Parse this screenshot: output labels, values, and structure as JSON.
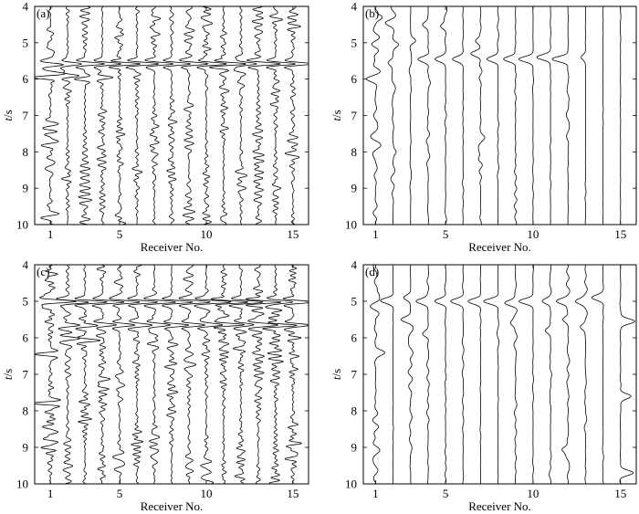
{
  "chart_data": [
    {
      "type": "line",
      "panel_label": "(a)",
      "xlabel": "Receiver No.",
      "ylabel": "t/s",
      "xticks": [
        1,
        5,
        10,
        15
      ],
      "yticks": [
        4,
        5,
        6,
        7,
        8,
        9,
        10
      ],
      "xlim": [
        0.1,
        15.9
      ],
      "ylim": [
        4,
        10
      ],
      "y_axis_reversed": true,
      "grid": false,
      "receivers": [
        1,
        2,
        3,
        4,
        5,
        6,
        7,
        8,
        9,
        10,
        11,
        12,
        13,
        14,
        15
      ],
      "noise_amplitude": [
        0.55,
        0.35,
        0.4,
        0.3,
        0.35,
        0.3,
        0.35,
        0.3,
        0.35,
        0.35,
        0.35,
        0.35,
        0.35,
        0.4,
        0.45
      ],
      "noise_frequency_hz": 4.5,
      "events": [
        {
          "receiver": 1,
          "t": 5.6,
          "amp": 0.7
        },
        {
          "receiver": 1,
          "t": 5.95,
          "amp": -0.9
        },
        {
          "receiver": 1,
          "t": 7.45,
          "amp": 0.7
        },
        {
          "receiver": 2,
          "t": 5.58,
          "amp": 0.9
        },
        {
          "receiver": 2,
          "t": 5.9,
          "amp": 0.8
        },
        {
          "receiver": 3,
          "t": 5.58,
          "amp": 1.1
        },
        {
          "receiver": 3,
          "t": 6.0,
          "amp": -0.6
        },
        {
          "receiver": 4,
          "t": 5.58,
          "amp": 1.1
        },
        {
          "receiver": 4,
          "t": 5.95,
          "amp": 0.6
        },
        {
          "receiver": 5,
          "t": 5.58,
          "amp": 1.1
        },
        {
          "receiver": 6,
          "t": 5.58,
          "amp": 1.1
        },
        {
          "receiver": 7,
          "t": 5.58,
          "amp": 1.1
        },
        {
          "receiver": 8,
          "t": 5.58,
          "amp": 1.1
        },
        {
          "receiver": 9,
          "t": 5.58,
          "amp": 1.1
        },
        {
          "receiver": 10,
          "t": 5.58,
          "amp": 1.1
        },
        {
          "receiver": 11,
          "t": 5.58,
          "amp": 1.1
        },
        {
          "receiver": 12,
          "t": 5.58,
          "amp": 1.1
        },
        {
          "receiver": 13,
          "t": 5.58,
          "amp": 1.1
        },
        {
          "receiver": 14,
          "t": 5.58,
          "amp": 1.1
        },
        {
          "receiver": 15,
          "t": 5.58,
          "amp": 1.1
        }
      ]
    },
    {
      "type": "line",
      "panel_label": "(b)",
      "xlabel": "Receiver No.",
      "ylabel": "t/s",
      "xticks": [
        1,
        5,
        10,
        15
      ],
      "yticks": [
        4,
        5,
        6,
        7,
        8,
        9,
        10
      ],
      "xlim": [
        0.3,
        15.9
      ],
      "ylim": [
        4,
        10
      ],
      "y_axis_reversed": true,
      "grid": false,
      "receivers": [
        1,
        2,
        3,
        4,
        5,
        6,
        7,
        8,
        9,
        10,
        11,
        12,
        13,
        14,
        15
      ],
      "noise_amplitude": [
        0.3,
        0.15,
        0.08,
        0.1,
        0.08,
        0.04,
        0.12,
        0.05,
        0.08,
        0.03,
        0.03,
        0.1,
        0.03,
        0.02,
        0.02
      ],
      "noise_frequency_hz": 2,
      "events": [
        {
          "receiver": 1,
          "t": 4.3,
          "amp": 0.35
        },
        {
          "receiver": 1,
          "t": 6.0,
          "amp": -0.3
        },
        {
          "receiver": 2,
          "t": 4.45,
          "amp": -0.35
        },
        {
          "receiver": 2,
          "t": 5.05,
          "amp": 0.3
        },
        {
          "receiver": 2,
          "t": 5.55,
          "amp": -0.3
        },
        {
          "receiver": 2,
          "t": 8.0,
          "amp": 0.2
        },
        {
          "receiver": 3,
          "t": 4.95,
          "amp": 0.3
        },
        {
          "receiver": 4,
          "t": 4.5,
          "amp": -0.3
        },
        {
          "receiver": 4,
          "t": 5.45,
          "amp": -0.5
        },
        {
          "receiver": 4,
          "t": 6.1,
          "amp": 0.15
        },
        {
          "receiver": 5,
          "t": 4.55,
          "amp": -0.3
        },
        {
          "receiver": 5,
          "t": 5.45,
          "amp": -0.6
        },
        {
          "receiver": 6,
          "t": 5.45,
          "amp": -0.6
        },
        {
          "receiver": 7,
          "t": 4.95,
          "amp": -0.3
        },
        {
          "receiver": 7,
          "t": 5.3,
          "amp": -0.55
        },
        {
          "receiver": 7,
          "t": 7.6,
          "amp": 0.2
        },
        {
          "receiver": 7,
          "t": 8.0,
          "amp": -0.2
        },
        {
          "receiver": 8,
          "t": 5.45,
          "amp": -0.65
        },
        {
          "receiver": 9,
          "t": 5.45,
          "amp": -0.7
        },
        {
          "receiver": 10,
          "t": 5.45,
          "amp": -0.8
        },
        {
          "receiver": 11,
          "t": 5.4,
          "amp": -0.8
        },
        {
          "receiver": 12,
          "t": 5.45,
          "amp": -0.9
        },
        {
          "receiver": 13,
          "t": 5.4,
          "amp": -0.25
        }
      ]
    },
    {
      "type": "line",
      "panel_label": "(c)",
      "xlabel": "Receiver No.",
      "ylabel": "t/s",
      "xticks": [
        1,
        5,
        10,
        15
      ],
      "yticks": [
        4,
        5,
        6,
        7,
        8,
        9,
        10
      ],
      "xlim": [
        0.1,
        15.9
      ],
      "ylim": [
        4,
        10
      ],
      "y_axis_reversed": true,
      "grid": false,
      "receivers": [
        1,
        2,
        3,
        4,
        5,
        6,
        7,
        8,
        9,
        10,
        11,
        12,
        13,
        14,
        15
      ],
      "noise_amplitude": [
        0.7,
        0.45,
        0.5,
        0.45,
        0.4,
        0.35,
        0.4,
        0.4,
        0.4,
        0.4,
        0.4,
        0.45,
        0.4,
        0.45,
        0.5
      ],
      "noise_frequency_hz": 5,
      "events": [
        {
          "receiver": 1,
          "t": 5.02,
          "amp": 1.2
        },
        {
          "receiver": 1,
          "t": 6.45,
          "amp": -0.9
        },
        {
          "receiver": 1,
          "t": 7.8,
          "amp": -0.9
        },
        {
          "receiver": 1,
          "t": 9.0,
          "amp": -0.7
        },
        {
          "receiver": 2,
          "t": 5.02,
          "amp": 1.2
        },
        {
          "receiver": 2,
          "t": 5.65,
          "amp": 0.9
        },
        {
          "receiver": 2,
          "t": 6.0,
          "amp": 0.8
        },
        {
          "receiver": 3,
          "t": 5.02,
          "amp": 1.2
        },
        {
          "receiver": 3,
          "t": 5.65,
          "amp": 0.9
        },
        {
          "receiver": 3,
          "t": 6.05,
          "amp": 0.8
        },
        {
          "receiver": 4,
          "t": 5.02,
          "amp": 1.2
        },
        {
          "receiver": 4,
          "t": 5.65,
          "amp": 0.9
        },
        {
          "receiver": 5,
          "t": 5.02,
          "amp": 1.2
        },
        {
          "receiver": 5,
          "t": 5.65,
          "amp": 0.9
        },
        {
          "receiver": 6,
          "t": 5.02,
          "amp": 1.2
        },
        {
          "receiver": 6,
          "t": 5.65,
          "amp": 0.9
        },
        {
          "receiver": 7,
          "t": 5.02,
          "amp": 1.2
        },
        {
          "receiver": 7,
          "t": 5.65,
          "amp": 0.9
        },
        {
          "receiver": 8,
          "t": 5.02,
          "amp": 1.2
        },
        {
          "receiver": 8,
          "t": 5.65,
          "amp": 0.9
        },
        {
          "receiver": 9,
          "t": 5.02,
          "amp": 1.2
        },
        {
          "receiver": 9,
          "t": 5.65,
          "amp": 0.9
        },
        {
          "receiver": 10,
          "t": 5.02,
          "amp": 1.2
        },
        {
          "receiver": 10,
          "t": 5.65,
          "amp": 0.9
        },
        {
          "receiver": 11,
          "t": 5.02,
          "amp": 1.2
        },
        {
          "receiver": 11,
          "t": 5.65,
          "amp": 0.9
        },
        {
          "receiver": 12,
          "t": 5.02,
          "amp": 1.2
        },
        {
          "receiver": 12,
          "t": 5.65,
          "amp": 0.9
        },
        {
          "receiver": 13,
          "t": 5.02,
          "amp": 1.2
        },
        {
          "receiver": 13,
          "t": 5.65,
          "amp": 0.9
        },
        {
          "receiver": 14,
          "t": 5.02,
          "amp": 1.2
        },
        {
          "receiver": 14,
          "t": 5.65,
          "amp": 0.9
        },
        {
          "receiver": 15,
          "t": 5.02,
          "amp": 1.2
        },
        {
          "receiver": 15,
          "t": 5.65,
          "amp": 0.9
        }
      ]
    },
    {
      "type": "line",
      "panel_label": "(d)",
      "xlabel": "Receiver No.",
      "ylabel": "t/s",
      "xticks": [
        1,
        5,
        10,
        15
      ],
      "yticks": [
        4,
        5,
        6,
        7,
        8,
        9,
        10
      ],
      "xlim": [
        0.3,
        15.9
      ],
      "ylim": [
        4,
        10
      ],
      "y_axis_reversed": true,
      "grid": false,
      "receivers": [
        1,
        2,
        3,
        4,
        5,
        6,
        7,
        8,
        9,
        10,
        11,
        12,
        13,
        14,
        15
      ],
      "noise_amplitude": [
        0.3,
        0.03,
        0.15,
        0.08,
        0.05,
        0.05,
        0.03,
        0.06,
        0.1,
        0.03,
        0.08,
        0.12,
        0.1,
        0.05,
        0.05
      ],
      "noise_frequency_hz": 2,
      "events": [
        {
          "receiver": 1,
          "t": 4.8,
          "amp": 0.25
        },
        {
          "receiver": 1,
          "t": 6.4,
          "amp": 0.5
        },
        {
          "receiver": 2,
          "t": 4.98,
          "amp": -0.7
        },
        {
          "receiver": 3,
          "t": 4.9,
          "amp": -0.4
        },
        {
          "receiver": 3,
          "t": 5.5,
          "amp": -0.5
        },
        {
          "receiver": 4,
          "t": 5.0,
          "amp": -0.7
        },
        {
          "receiver": 4,
          "t": 5.9,
          "amp": -0.3
        },
        {
          "receiver": 5,
          "t": 5.0,
          "amp": -0.6
        },
        {
          "receiver": 6,
          "t": 5.0,
          "amp": -0.7
        },
        {
          "receiver": 7,
          "t": 5.0,
          "amp": -0.7
        },
        {
          "receiver": 8,
          "t": 5.0,
          "amp": -0.8
        },
        {
          "receiver": 9,
          "t": 5.05,
          "amp": -0.6
        },
        {
          "receiver": 9,
          "t": 5.6,
          "amp": -0.3
        },
        {
          "receiver": 10,
          "t": 5.0,
          "amp": -0.8
        },
        {
          "receiver": 11,
          "t": 5.0,
          "amp": -0.5
        },
        {
          "receiver": 11,
          "t": 5.8,
          "amp": -0.3
        },
        {
          "receiver": 12,
          "t": 5.0,
          "amp": -0.7
        },
        {
          "receiver": 12,
          "t": 5.5,
          "amp": -0.3
        },
        {
          "receiver": 12,
          "t": 9.05,
          "amp": -0.4
        },
        {
          "receiver": 13,
          "t": 5.0,
          "amp": -0.5
        },
        {
          "receiver": 13,
          "t": 5.7,
          "amp": -0.3
        },
        {
          "receiver": 14,
          "t": 4.9,
          "amp": -0.6
        },
        {
          "receiver": 15,
          "t": 5.55,
          "amp": 0.8
        },
        {
          "receiver": 15,
          "t": 7.6,
          "amp": 0.6
        },
        {
          "receiver": 15,
          "t": 9.7,
          "amp": 0.7
        }
      ]
    }
  ]
}
